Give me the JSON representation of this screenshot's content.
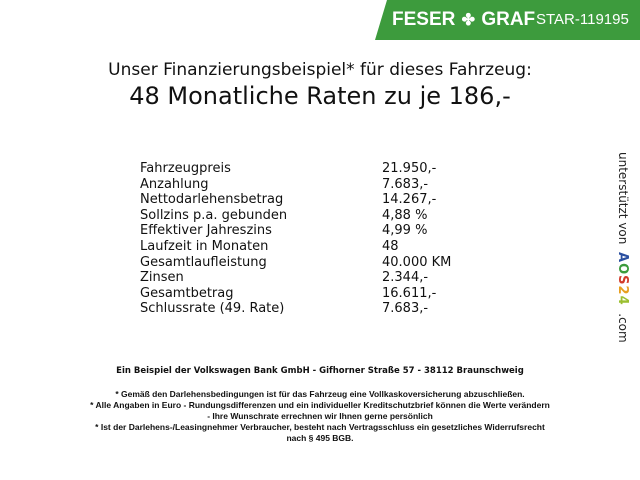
{
  "header": {
    "brand": [
      "FESER",
      "GRAF"
    ],
    "brand_icon": "clover-icon",
    "stock_id": "STAR-119195",
    "brand_color": "#3d9b3d"
  },
  "title": {
    "line1": "Unser Finanzierungsbeispiel* für dieses Fahrzeug:",
    "line2": "48 Monatliche Raten zu je 186,-"
  },
  "finance_rows": [
    {
      "label": "Fahrzeugpreis",
      "value": "21.950,-"
    },
    {
      "label": "Anzahlung",
      "value": "7.683,-"
    },
    {
      "label": "Nettodarlehensbetrag",
      "value": "14.267,-"
    },
    {
      "label": "Sollzins p.a. gebunden",
      "value": "4,88 %"
    },
    {
      "label": "Effektiver Jahreszins",
      "value": "4,99 %"
    },
    {
      "label": "Laufzeit in Monaten",
      "value": "48"
    },
    {
      "label": "Gesamtlaufleistung",
      "value": "40.000 KM"
    },
    {
      "label": "Zinsen",
      "value": "2.344,-"
    },
    {
      "label": "Gesamtbetrag",
      "value": "16.611,-"
    },
    {
      "label": "Schlussrate (49. Rate)",
      "value": "7.683,-"
    }
  ],
  "sidebar": {
    "text": "unterstützt von",
    "logo": "AOS24",
    "suffix": ".com"
  },
  "footer": {
    "bank": "Ein Beispiel der Volkswagen Bank GmbH - Gifhorner Straße 57 - 38112 Braunschweig",
    "notes": [
      "* Gemäß den Darlehensbedingungen ist für das Fahrzeug eine Vollkaskoversicherung abzuschließen.",
      "* Alle Angaben in Euro - Rundungsdifferenzen und ein individueller Kreditschutzbrief können die Werte verändern",
      "- Ihre Wunschrate errechnen wir Ihnen gerne persönlich",
      "* Ist der Darlehens-/Leasingnehmer Verbraucher, besteht nach Vertragsschluss ein gesetzliches Widerrufsrecht",
      "nach § 495 BGB."
    ]
  }
}
